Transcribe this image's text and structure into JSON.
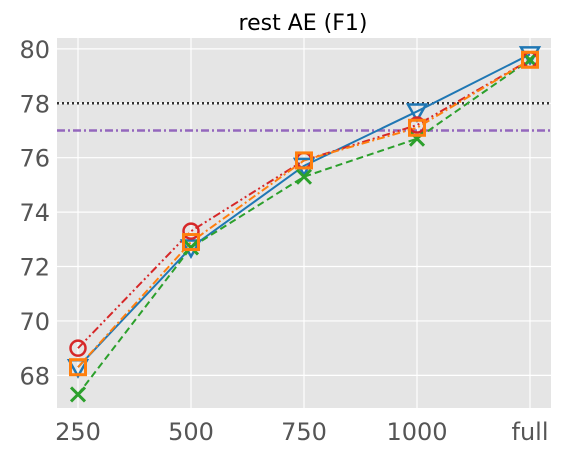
{
  "chart_data": {
    "type": "line",
    "title": "rest AE (F1)",
    "xlabel": "",
    "ylabel": "",
    "categories": [
      "250",
      "500",
      "750",
      "1000",
      "full"
    ],
    "ylim": [
      66.8,
      80.4
    ],
    "yticks": [
      68,
      70,
      72,
      74,
      76,
      78,
      80
    ],
    "grid": true,
    "legend": "none",
    "background_color": "#e5e5e5",
    "grid_color": "#ffffff",
    "series": [
      {
        "values": [
          68.3,
          72.7,
          75.7,
          77.7,
          79.8
        ],
        "color": "#1f77b4",
        "dash": "solid",
        "marker": "triangle-down"
      },
      {
        "values": [
          67.3,
          72.7,
          75.3,
          76.7,
          79.6
        ],
        "color": "#2ca02c",
        "dash": "dashed",
        "marker": "x"
      },
      {
        "values": [
          69.0,
          73.3,
          75.9,
          77.2,
          79.6
        ],
        "color": "#d62728",
        "dash": "dashdotdot",
        "marker": "circle"
      },
      {
        "values": [
          68.3,
          72.9,
          75.9,
          77.1,
          79.6
        ],
        "color": "#ff7f0e",
        "dash": "dashdot",
        "marker": "square"
      }
    ],
    "reference_lines": [
      {
        "y": 78.0,
        "color": "#333333",
        "dash": "dotted"
      },
      {
        "y": 77.0,
        "color": "#9467bd",
        "dash": "dashdot"
      }
    ]
  }
}
